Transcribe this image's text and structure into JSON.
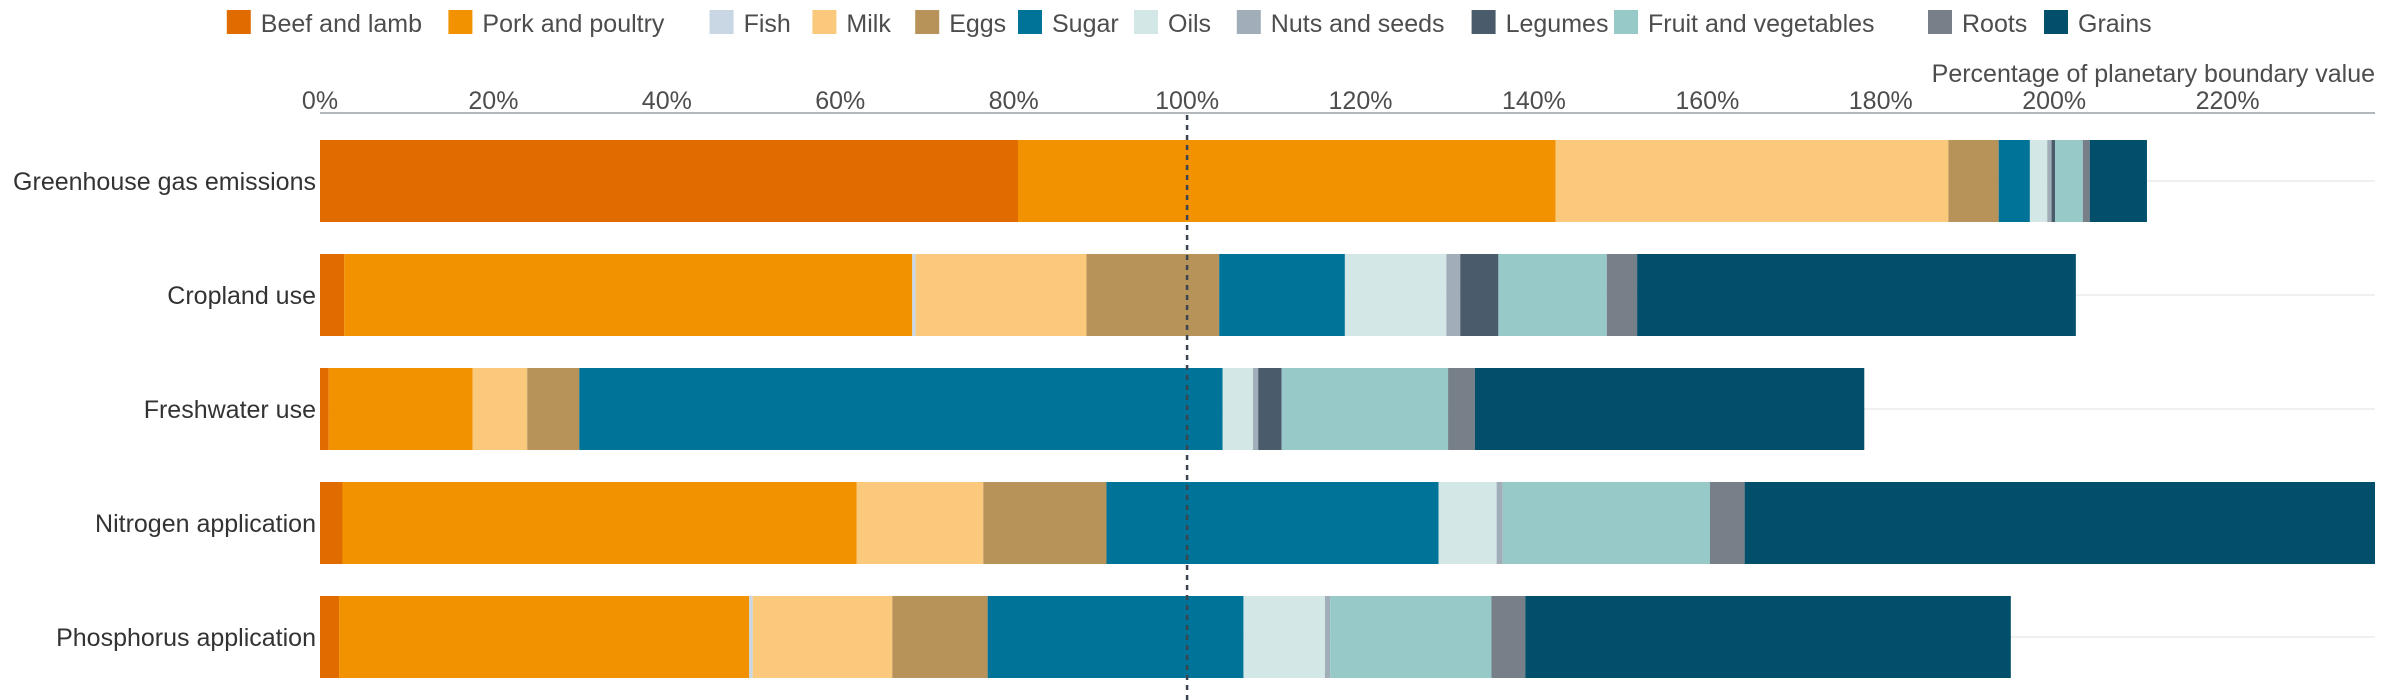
{
  "chart_data": {
    "type": "bar",
    "orientation": "horizontal",
    "stacked": true,
    "xlabel": "Percentage of planetary boundary value",
    "x_ticks": [
      "0%",
      "20%",
      "40%",
      "60%",
      "80%",
      "100%",
      "120%",
      "140%",
      "160%",
      "180%",
      "200%",
      "220%"
    ],
    "xlim": [
      0,
      237
    ],
    "reference_line": 100,
    "legend_position": "top",
    "categories": [
      "Greenhouse gas emissions",
      "Cropland use",
      "Freshwater use",
      "Nitrogen application",
      "Phosphorus application"
    ],
    "series": [
      {
        "name": "Beef and lamb",
        "color": "#e06c00",
        "values": [
          80.5,
          2.8,
          1.0,
          2.6,
          2.2
        ]
      },
      {
        "name": "Pork and poultry",
        "color": "#f39200",
        "values": [
          62.0,
          65.5,
          16.6,
          59.3,
          47.3
        ]
      },
      {
        "name": "Fish",
        "color": "#c8d7e3",
        "values": [
          0,
          0.4,
          0,
          0,
          0.4
        ]
      },
      {
        "name": "Milk",
        "color": "#fbc97b",
        "values": [
          45.3,
          19.7,
          6.3,
          14.6,
          16.1
        ]
      },
      {
        "name": "Eggs",
        "color": "#b79259",
        "values": [
          5.8,
          15.3,
          6.0,
          14.2,
          11.0
        ]
      },
      {
        "name": "Sugar",
        "color": "#007398",
        "values": [
          3.6,
          14.5,
          74.2,
          38.3,
          29.5
        ]
      },
      {
        "name": "Oils",
        "color": "#d2e7e6",
        "values": [
          2.0,
          11.7,
          3.5,
          6.7,
          9.4
        ]
      },
      {
        "name": "Nuts and seeds",
        "color": "#a1aeb9",
        "values": [
          0.5,
          1.6,
          0.6,
          0.7,
          0.6
        ]
      },
      {
        "name": "Legumes",
        "color": "#4a5c6b",
        "values": [
          0.4,
          4.4,
          2.7,
          0,
          0
        ]
      },
      {
        "name": "Fruit and vegetables",
        "color": "#96c9c8",
        "values": [
          3.2,
          12.5,
          19.2,
          23.9,
          18.6
        ]
      },
      {
        "name": "Roots",
        "color": "#778089",
        "values": [
          0.8,
          3.5,
          3.1,
          4.0,
          3.9
        ]
      },
      {
        "name": "Grains",
        "color": "#024f6b",
        "values": [
          6.6,
          50.6,
          44.9,
          73.5,
          56.0
        ]
      }
    ]
  }
}
